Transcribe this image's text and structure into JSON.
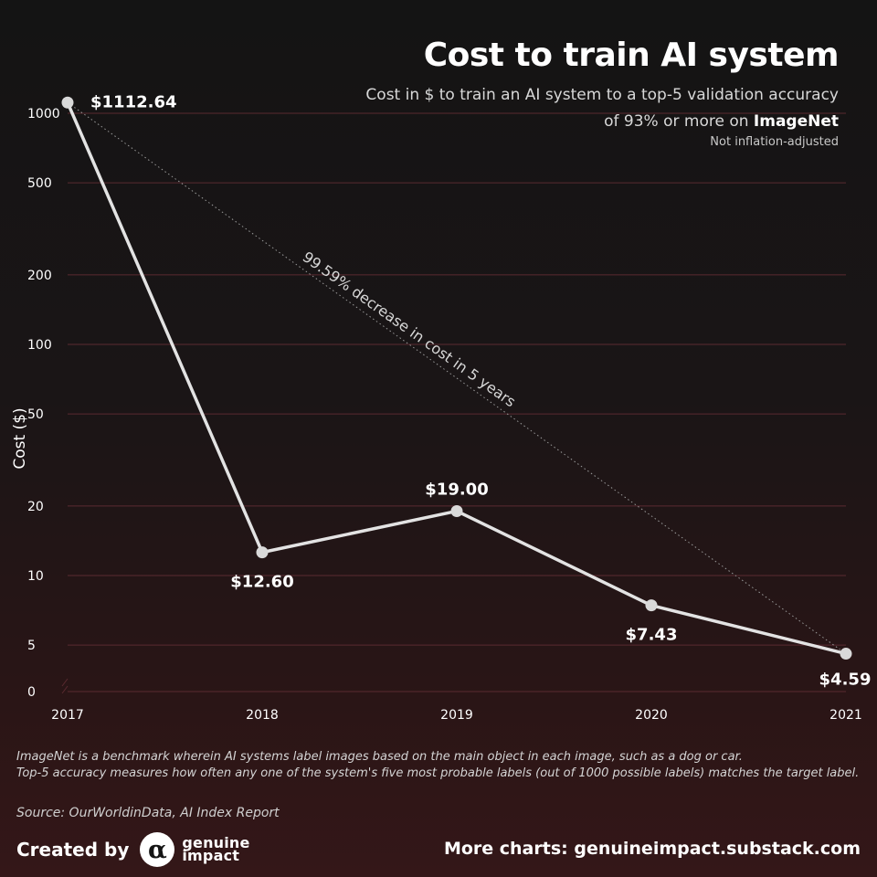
{
  "header": {
    "title": "Cost to train AI system",
    "subtitle_prefix": "Cost in $ to train an AI system to a top-5 validation accuracy of 93% or more on",
    "subtitle_bold": "ImageNet",
    "note": "Not inflation-adjusted"
  },
  "chart_data": {
    "type": "line",
    "title": "Cost to train AI system",
    "ylabel": "Cost ($)",
    "xlabel": "",
    "y_scale": "log",
    "x": [
      "2017",
      "2018",
      "2019",
      "2020",
      "2021"
    ],
    "series": [
      {
        "values": [
          1112.64,
          12.6,
          19.0,
          7.43,
          4.59
        ]
      }
    ],
    "data_labels": [
      "$1112.64",
      "$12.60",
      "$19.00",
      "$7.43",
      "$4.59"
    ],
    "y_ticks": [
      "1000",
      "500",
      "200",
      "100",
      "50",
      "20",
      "10",
      "5",
      "0"
    ],
    "grid": true,
    "annotation": "99.59% decrease in cost in 5 years",
    "colors": {
      "line": "#e3e3e3",
      "point": "#d9d9d9",
      "grid": "#5a2a30",
      "trend": "#9a9a9a"
    }
  },
  "footer": {
    "footnote_line1": "ImageNet is a benchmark wherein AI systems label images based on the main object in each image, such as a dog or car.",
    "footnote_line2": "Top-5 accuracy measures how often any one of the system's five most probable labels (out of 1000 possible labels) matches the target label.",
    "source": "Source: OurWorldinData, AI Index Report",
    "created_by": "Created by",
    "logo_icon": "alpha-logo-icon",
    "logo_line1": "genuine",
    "logo_line2": "impact",
    "more_charts": "More charts: genuineimpact.substack.com"
  }
}
